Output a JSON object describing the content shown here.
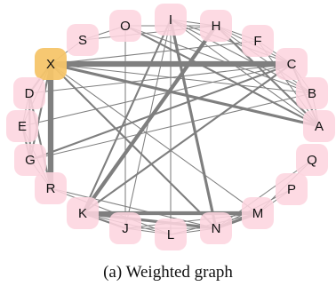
{
  "caption": "(a) Weighted graph",
  "colors": {
    "node_fill": "#fdd5df",
    "highlight_fill": "#f5c56a",
    "edge": "#7f7f7f",
    "background": "#ffffff"
  },
  "nodes": [
    {
      "id": "I",
      "label": "I",
      "highlighted": false
    },
    {
      "id": "H",
      "label": "H",
      "highlighted": false
    },
    {
      "id": "O",
      "label": "O",
      "highlighted": false
    },
    {
      "id": "S",
      "label": "S",
      "highlighted": false
    },
    {
      "id": "F",
      "label": "F",
      "highlighted": false
    },
    {
      "id": "X",
      "label": "X",
      "highlighted": true
    },
    {
      "id": "C",
      "label": "C",
      "highlighted": false
    },
    {
      "id": "D",
      "label": "D",
      "highlighted": false
    },
    {
      "id": "B",
      "label": "B",
      "highlighted": false
    },
    {
      "id": "E",
      "label": "E",
      "highlighted": false
    },
    {
      "id": "A",
      "label": "A",
      "highlighted": false
    },
    {
      "id": "G",
      "label": "G",
      "highlighted": false
    },
    {
      "id": "Q",
      "label": "Q",
      "highlighted": false
    },
    {
      "id": "R",
      "label": "R",
      "highlighted": false
    },
    {
      "id": "P",
      "label": "P",
      "highlighted": false
    },
    {
      "id": "K",
      "label": "K",
      "highlighted": false
    },
    {
      "id": "M",
      "label": "M",
      "highlighted": false
    },
    {
      "id": "J",
      "label": "J",
      "highlighted": false
    },
    {
      "id": "N",
      "label": "N",
      "highlighted": false
    },
    {
      "id": "L",
      "label": "L",
      "highlighted": false
    }
  ],
  "edges": [
    {
      "source": "X",
      "target": "C",
      "weight": 6
    },
    {
      "source": "X",
      "target": "R",
      "weight": 6
    },
    {
      "source": "X",
      "target": "A",
      "weight": 3
    },
    {
      "source": "X",
      "target": "B",
      "weight": 1
    },
    {
      "source": "X",
      "target": "N",
      "weight": 2
    },
    {
      "source": "X",
      "target": "M",
      "weight": 1
    },
    {
      "source": "X",
      "target": "S",
      "weight": 1
    },
    {
      "source": "K",
      "target": "H",
      "weight": 4
    },
    {
      "source": "K",
      "target": "I",
      "weight": 2
    },
    {
      "source": "K",
      "target": "M",
      "weight": 4
    },
    {
      "source": "K",
      "target": "N",
      "weight": 3
    },
    {
      "source": "K",
      "target": "J",
      "weight": 2
    },
    {
      "source": "K",
      "target": "L",
      "weight": 1
    },
    {
      "source": "I",
      "target": "N",
      "weight": 3
    },
    {
      "source": "I",
      "target": "A",
      "weight": 1
    },
    {
      "source": "I",
      "target": "B",
      "weight": 1
    },
    {
      "source": "I",
      "target": "C",
      "weight": 1
    },
    {
      "source": "I",
      "target": "J",
      "weight": 1
    },
    {
      "source": "I",
      "target": "H",
      "weight": 1
    },
    {
      "source": "H",
      "target": "A",
      "weight": 2
    },
    {
      "source": "H",
      "target": "F",
      "weight": 1
    },
    {
      "source": "H",
      "target": "C",
      "weight": 1
    },
    {
      "source": "H",
      "target": "B",
      "weight": 1
    },
    {
      "source": "H",
      "target": "O",
      "weight": 1
    },
    {
      "source": "O",
      "target": "S",
      "weight": 1
    },
    {
      "source": "O",
      "target": "A",
      "weight": 2
    },
    {
      "source": "O",
      "target": "J",
      "weight": 1
    },
    {
      "source": "O",
      "target": "B",
      "weight": 1
    },
    {
      "source": "S",
      "target": "H",
      "weight": 1
    },
    {
      "source": "F",
      "target": "A",
      "weight": 1
    },
    {
      "source": "F",
      "target": "C",
      "weight": 1
    },
    {
      "source": "C",
      "target": "A",
      "weight": 2
    },
    {
      "source": "C",
      "target": "B",
      "weight": 1
    },
    {
      "source": "C",
      "target": "D",
      "weight": 1
    },
    {
      "source": "C",
      "target": "E",
      "weight": 1
    },
    {
      "source": "C",
      "target": "G",
      "weight": 2
    },
    {
      "source": "C",
      "target": "K",
      "weight": 2
    },
    {
      "source": "B",
      "target": "G",
      "weight": 1
    },
    {
      "source": "B",
      "target": "A",
      "weight": 1
    },
    {
      "source": "D",
      "target": "X",
      "weight": 2
    },
    {
      "source": "D",
      "target": "R",
      "weight": 2
    },
    {
      "source": "D",
      "target": "G",
      "weight": 2
    },
    {
      "source": "D",
      "target": "E",
      "weight": 1
    },
    {
      "source": "E",
      "target": "G",
      "weight": 2
    },
    {
      "source": "E",
      "target": "R",
      "weight": 1
    },
    {
      "source": "E",
      "target": "X",
      "weight": 1
    },
    {
      "source": "G",
      "target": "X",
      "weight": 2
    },
    {
      "source": "G",
      "target": "R",
      "weight": 1
    },
    {
      "source": "Q",
      "target": "M",
      "weight": 1
    },
    {
      "source": "Q",
      "target": "N",
      "weight": 1
    },
    {
      "source": "P",
      "target": "M",
      "weight": 1
    },
    {
      "source": "P",
      "target": "N",
      "weight": 1
    },
    {
      "source": "M",
      "target": "N",
      "weight": 3
    },
    {
      "source": "M",
      "target": "L",
      "weight": 1
    },
    {
      "source": "M",
      "target": "J",
      "weight": 1
    },
    {
      "source": "N",
      "target": "L",
      "weight": 1
    },
    {
      "source": "J",
      "target": "L",
      "weight": 1
    },
    {
      "source": "J",
      "target": "N",
      "weight": 1
    },
    {
      "source": "R",
      "target": "N",
      "weight": 1
    },
    {
      "source": "R",
      "target": "L",
      "weight": 1
    },
    {
      "source": "L",
      "target": "I",
      "weight": 1
    },
    {
      "source": "F",
      "target": "X",
      "weight": 1
    }
  ]
}
